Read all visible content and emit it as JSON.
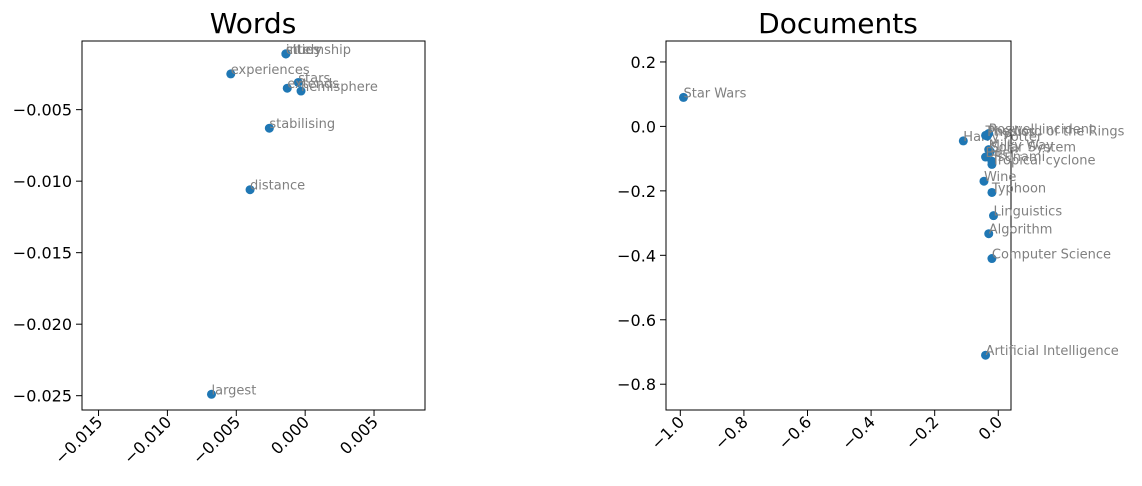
{
  "chart_data": [
    {
      "type": "scatter",
      "title": "Words",
      "xlabel": "",
      "ylabel": "",
      "xlim": [
        -0.0162,
        0.0087
      ],
      "ylim": [
        -0.026,
        -0.0002
      ],
      "xticks": [
        -0.015,
        -0.01,
        -0.005,
        0.0,
        0.005
      ],
      "xtick_labels": [
        "−0.015",
        "−0.010",
        "−0.005",
        "0.000",
        "0.005"
      ],
      "yticks": [
        -0.005,
        -0.01,
        -0.015,
        -0.02,
        -0.025
      ],
      "ytick_labels": [
        "−0.005",
        "−0.010",
        "−0.015",
        "−0.020",
        "−0.025"
      ],
      "point_color": "#1f77b4",
      "label_color": "#808080",
      "points": [
        {
          "label": "internship",
          "x": -0.0014,
          "y": -0.0011
        },
        {
          "label": "study",
          "x": -0.0014,
          "y": -0.0011
        },
        {
          "label": "cities",
          "x": -0.0014,
          "y": -0.0011
        },
        {
          "label": "experiences",
          "x": -0.0054,
          "y": -0.0025
        },
        {
          "label": "stars",
          "x": -0.0005,
          "y": -0.0031
        },
        {
          "label": "extends",
          "x": -0.0013,
          "y": -0.0035
        },
        {
          "label": "hemisphere",
          "x": -0.0003,
          "y": -0.0037
        },
        {
          "label": "stabilising",
          "x": -0.0026,
          "y": -0.0063
        },
        {
          "label": "distance",
          "x": -0.004,
          "y": -0.0106
        },
        {
          "label": "largest",
          "x": -0.0068,
          "y": -0.0249
        }
      ]
    },
    {
      "type": "scatter",
      "title": "Documents",
      "xlabel": "",
      "ylabel": "",
      "xlim": [
        -1.045,
        0.04
      ],
      "ylim": [
        -0.88,
        0.265
      ],
      "xticks": [
        -1.0,
        -0.8,
        -0.6,
        -0.4,
        -0.2,
        0.0
      ],
      "xtick_labels": [
        "−1.0",
        "−0.8",
        "−0.6",
        "−0.4",
        "−0.2",
        "0.0"
      ],
      "yticks": [
        0.2,
        0.0,
        -0.2,
        -0.4,
        -0.6,
        -0.8
      ],
      "ytick_labels": [
        "0.2",
        "0.0",
        "−0.2",
        "−0.4",
        "−0.6",
        "−0.8"
      ],
      "point_color": "#1f77b4",
      "label_color": "#808080",
      "points": [
        {
          "label": "Star Wars",
          "x": -0.99,
          "y": 0.09
        },
        {
          "label": "Harry Potter",
          "x": -0.11,
          "y": -0.045
        },
        {
          "label": "The Lord of the Rings",
          "x": -0.04,
          "y": -0.028
        },
        {
          "label": "Roswell incident",
          "x": -0.03,
          "y": -0.022
        },
        {
          "label": "Physics",
          "x": -0.035,
          "y": -0.03
        },
        {
          "label": "Milky Way",
          "x": -0.03,
          "y": -0.072
        },
        {
          "label": "Solar System",
          "x": -0.025,
          "y": -0.078
        },
        {
          "label": "Beer",
          "x": -0.04,
          "y": -0.095
        },
        {
          "label": "Tsunami",
          "x": -0.02,
          "y": -0.108
        },
        {
          "label": "Tropical cyclone",
          "x": -0.02,
          "y": -0.118
        },
        {
          "label": "Wine",
          "x": -0.045,
          "y": -0.17
        },
        {
          "label": "Typhoon",
          "x": -0.02,
          "y": -0.205
        },
        {
          "label": "Linguistics",
          "x": -0.015,
          "y": -0.277
        },
        {
          "label": "Algorithm",
          "x": -0.03,
          "y": -0.333
        },
        {
          "label": "Computer Science",
          "x": -0.02,
          "y": -0.41
        },
        {
          "label": "Artificial Intelligence",
          "x": -0.04,
          "y": -0.71
        }
      ]
    }
  ]
}
